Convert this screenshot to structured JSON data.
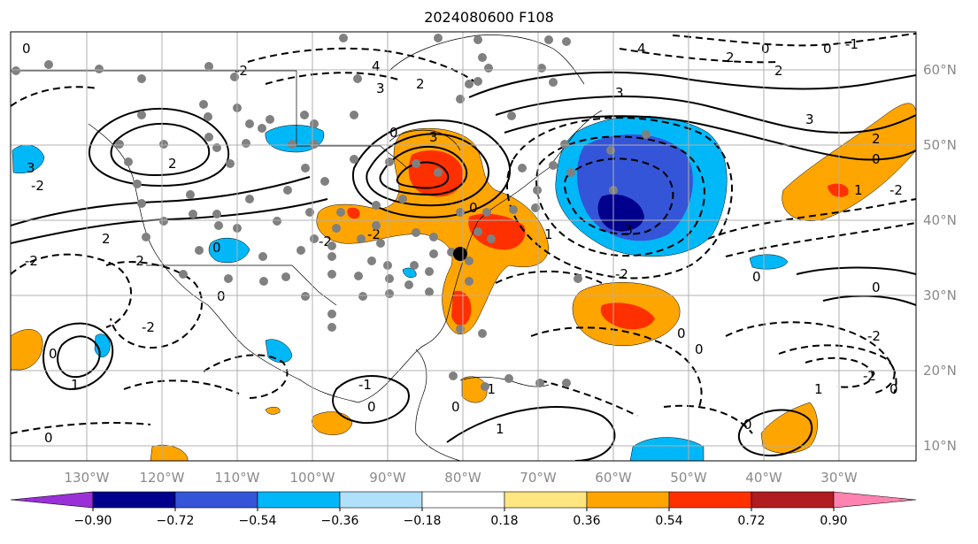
{
  "title": "2024080600 F108",
  "lat_labels": [
    "60°N",
    "50°N",
    "40°N",
    "30°N",
    "20°N",
    "10°N"
  ],
  "lon_labels": [
    "130°W",
    "120°W",
    "110°W",
    "100°W",
    "90°W",
    "80°W",
    "70°W",
    "60°W",
    "50°W",
    "40°W",
    "30°W"
  ],
  "colorbar": {
    "ticks": [
      "−0.90",
      "−0.72",
      "−0.54",
      "−0.36",
      "−0.18",
      "0.18",
      "0.36",
      "0.54",
      "0.72",
      "0.90"
    ],
    "colors": [
      "#9a30d8",
      "#00008c",
      "#3455d8",
      "#00b8f8",
      "#b0e0fa",
      "#ffffff",
      "#ffe680",
      "#ffa500",
      "#ff3000",
      "#b01c20",
      "#ff82b0"
    ]
  },
  "contour_labels": [
    "0",
    "1",
    "2",
    "3",
    "4",
    "-1",
    "-2",
    "-3"
  ],
  "colors": {
    "warm": "#ffa500",
    "hot": "#ff3000",
    "cool": "#00b8f8",
    "cold": "#3455d8",
    "darkcold": "#00008c",
    "station": "#808080"
  }
}
